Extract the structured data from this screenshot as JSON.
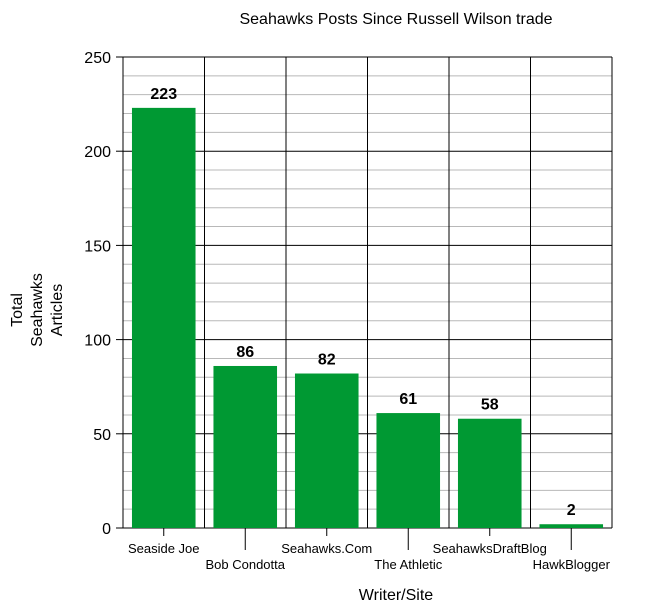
{
  "chart_data": {
    "type": "bar",
    "title": "Seahawks Posts Since Russell Wilson trade",
    "xlabel": "Writer/Site",
    "ylabel_lines": [
      "Total",
      "Seahawks",
      "Articles"
    ],
    "categories": [
      "Seaside Joe",
      "Bob Condotta",
      "Seahawks.Com",
      "The Athletic",
      "SeahawksDraftBlog",
      "HawkBlogger"
    ],
    "values": [
      223,
      86,
      82,
      61,
      58,
      2
    ],
    "value_labels": [
      "223",
      "86",
      "82",
      "61",
      "58",
      "2"
    ],
    "ylim": [
      0,
      250
    ],
    "yticks": [
      0,
      50,
      100,
      150,
      200,
      250
    ],
    "ytick_labels": [
      "0",
      "50",
      "100",
      "150",
      "200",
      "250"
    ],
    "minor_grid_step": 10,
    "grid": true,
    "legend": "none",
    "bar_color": "#009933"
  }
}
